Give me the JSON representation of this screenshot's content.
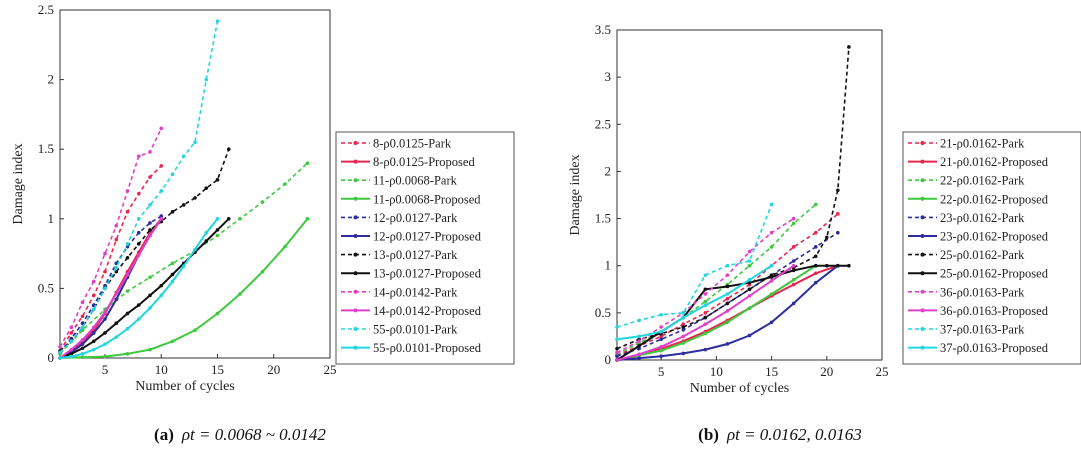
{
  "charts": [
    {
      "type": "line",
      "caption_tag": "(a)",
      "caption_formula": "ρt = 0.0068 ~ 0.0142",
      "xlabel": "Number of cycles",
      "ylabel": "Damage index",
      "xlim": [
        1,
        25
      ],
      "ylim": [
        0,
        2.5
      ],
      "xticks": [
        5,
        10,
        15,
        20,
        25
      ],
      "yticks": [
        0,
        0.5,
        1,
        1.5,
        2,
        2.5
      ],
      "series": [
        {
          "name": "8-ρ0.0125-Park",
          "color": "#e8254f",
          "dash": true,
          "marker": true,
          "x": [
            1,
            2,
            3,
            4,
            5,
            6,
            7,
            8,
            9,
            10
          ],
          "y": [
            0.05,
            0.18,
            0.3,
            0.45,
            0.62,
            0.85,
            1.05,
            1.18,
            1.3,
            1.38
          ]
        },
        {
          "name": "8-ρ0.0125-Proposed",
          "color": "#e8254f",
          "dash": false,
          "marker": true,
          "x": [
            1,
            2,
            3,
            4,
            5,
            6,
            7,
            8,
            9,
            10
          ],
          "y": [
            0,
            0.05,
            0.11,
            0.2,
            0.32,
            0.47,
            0.62,
            0.76,
            0.9,
            1.0
          ]
        },
        {
          "name": "11-ρ0.0068-Park",
          "color": "#3ec93e",
          "dash": true,
          "marker": true,
          "x": [
            1,
            3,
            5,
            7,
            9,
            11,
            13,
            15,
            17,
            19,
            21,
            23
          ],
          "y": [
            0.03,
            0.2,
            0.35,
            0.48,
            0.58,
            0.68,
            0.77,
            0.88,
            1.0,
            1.12,
            1.25,
            1.4
          ]
        },
        {
          "name": "11-ρ0.0068-Proposed",
          "color": "#3ec93e",
          "dash": false,
          "marker": true,
          "x": [
            1,
            3,
            5,
            7,
            9,
            11,
            13,
            15,
            17,
            19,
            21,
            23
          ],
          "y": [
            0,
            0.005,
            0.01,
            0.03,
            0.06,
            0.12,
            0.2,
            0.32,
            0.46,
            0.62,
            0.8,
            1.0
          ]
        },
        {
          "name": "12-ρ0.0127-Park",
          "color": "#2d2d9e",
          "dash": true,
          "marker": true,
          "x": [
            1,
            2,
            3,
            4,
            5,
            6,
            7,
            8,
            9,
            10
          ],
          "y": [
            0.04,
            0.14,
            0.25,
            0.38,
            0.52,
            0.68,
            0.8,
            0.9,
            0.97,
            1.02
          ]
        },
        {
          "name": "12-ρ0.0127-Proposed",
          "color": "#2d2d9e",
          "dash": false,
          "marker": true,
          "x": [
            1,
            2,
            3,
            4,
            5,
            6,
            7,
            8,
            9,
            10
          ],
          "y": [
            0,
            0.04,
            0.1,
            0.18,
            0.28,
            0.42,
            0.58,
            0.74,
            0.88,
            1.0
          ]
        },
        {
          "name": "13-ρ0.0127-Park",
          "color": "#111111",
          "dash": true,
          "marker": true,
          "x": [
            1,
            2,
            3,
            4,
            5,
            6,
            7,
            8,
            9,
            10,
            11,
            12,
            13,
            14,
            15,
            16
          ],
          "y": [
            0.05,
            0.12,
            0.22,
            0.35,
            0.5,
            0.62,
            0.72,
            0.82,
            0.92,
            0.98,
            1.05,
            1.1,
            1.15,
            1.22,
            1.28,
            1.5
          ]
        },
        {
          "name": "13-ρ0.0127-Proposed",
          "color": "#111111",
          "dash": false,
          "marker": true,
          "x": [
            1,
            2,
            3,
            4,
            5,
            6,
            7,
            8,
            9,
            10,
            11,
            12,
            13,
            14,
            15,
            16
          ],
          "y": [
            0,
            0.03,
            0.07,
            0.12,
            0.18,
            0.25,
            0.32,
            0.38,
            0.45,
            0.52,
            0.6,
            0.68,
            0.76,
            0.84,
            0.92,
            1.0
          ]
        },
        {
          "name": "14-ρ0.0142-Park",
          "color": "#e040c8",
          "dash": true,
          "marker": true,
          "x": [
            1,
            2,
            3,
            4,
            5,
            6,
            7,
            8,
            9,
            10
          ],
          "y": [
            0.08,
            0.22,
            0.4,
            0.55,
            0.75,
            0.95,
            1.2,
            1.45,
            1.48,
            1.65
          ]
        },
        {
          "name": "14-ρ0.0142-Proposed",
          "color": "#e040c8",
          "dash": false,
          "marker": true,
          "x": [
            1,
            2,
            3,
            4,
            5,
            6,
            7,
            8,
            9,
            10
          ],
          "y": [
            0,
            0.06,
            0.13,
            0.22,
            0.33,
            0.46,
            0.6,
            0.74,
            0.88,
            1.0
          ]
        },
        {
          "name": "55-ρ0.0101-Park",
          "color": "#22d6e0",
          "dash": true,
          "marker": true,
          "x": [
            1,
            2,
            3,
            4,
            5,
            6,
            7,
            8,
            9,
            10,
            11,
            12,
            13,
            14,
            15
          ],
          "y": [
            0.04,
            0.12,
            0.22,
            0.35,
            0.5,
            0.65,
            0.82,
            1.0,
            1.1,
            1.2,
            1.32,
            1.45,
            1.55,
            2.0,
            2.42
          ]
        },
        {
          "name": "55-ρ0.0101-Proposed",
          "color": "#22d6e0",
          "dash": false,
          "marker": true,
          "x": [
            1,
            2,
            3,
            4,
            5,
            6,
            7,
            8,
            9,
            10,
            11,
            12,
            13,
            14,
            15
          ],
          "y": [
            0,
            0.01,
            0.03,
            0.06,
            0.1,
            0.15,
            0.21,
            0.28,
            0.36,
            0.45,
            0.55,
            0.66,
            0.78,
            0.9,
            1.0
          ]
        }
      ]
    },
    {
      "type": "line",
      "caption_tag": "(b)",
      "caption_formula": "ρt = 0.0162, 0.0163",
      "xlabel": "Number of cycles",
      "ylabel": "Damage index",
      "xlim": [
        1,
        25
      ],
      "ylim": [
        0,
        3.5
      ],
      "xticks": [
        5,
        10,
        15,
        20,
        25
      ],
      "yticks": [
        0,
        0.5,
        1,
        1.5,
        2,
        2.5,
        3,
        3.5
      ],
      "series": [
        {
          "name": "21-ρ0.0162-Park",
          "color": "#e8254f",
          "dash": true,
          "marker": true,
          "x": [
            1,
            3,
            5,
            7,
            9,
            11,
            13,
            15,
            17,
            19,
            21
          ],
          "y": [
            0.05,
            0.15,
            0.25,
            0.38,
            0.5,
            0.65,
            0.8,
            1.0,
            1.2,
            1.35,
            1.55
          ]
        },
        {
          "name": "21-ρ0.0162-Proposed",
          "color": "#e8254f",
          "dash": false,
          "marker": true,
          "x": [
            1,
            3,
            5,
            7,
            9,
            11,
            13,
            15,
            17,
            19,
            21
          ],
          "y": [
            0,
            0.05,
            0.12,
            0.2,
            0.3,
            0.42,
            0.55,
            0.68,
            0.8,
            0.92,
            1.0
          ]
        },
        {
          "name": "22-ρ0.0162-Park",
          "color": "#3ec93e",
          "dash": true,
          "marker": true,
          "x": [
            1,
            3,
            5,
            7,
            9,
            11,
            13,
            15,
            17,
            19
          ],
          "y": [
            0.06,
            0.18,
            0.3,
            0.45,
            0.62,
            0.8,
            1.0,
            1.2,
            1.45,
            1.65
          ]
        },
        {
          "name": "22-ρ0.0162-Proposed",
          "color": "#3ec93e",
          "dash": false,
          "marker": true,
          "x": [
            1,
            3,
            5,
            7,
            9,
            11,
            13,
            15,
            17,
            19
          ],
          "y": [
            0,
            0.05,
            0.1,
            0.18,
            0.28,
            0.4,
            0.55,
            0.7,
            0.85,
            1.0
          ]
        },
        {
          "name": "23-ρ0.0162-Park",
          "color": "#2d2d9e",
          "dash": true,
          "marker": true,
          "x": [
            1,
            3,
            5,
            7,
            9,
            11,
            13,
            15,
            17,
            19,
            21
          ],
          "y": [
            0.04,
            0.12,
            0.22,
            0.32,
            0.45,
            0.6,
            0.75,
            0.9,
            1.05,
            1.2,
            1.35
          ]
        },
        {
          "name": "23-ρ0.0162-Proposed",
          "color": "#2d2d9e",
          "dash": false,
          "marker": true,
          "x": [
            1,
            3,
            5,
            7,
            9,
            11,
            13,
            15,
            17,
            19,
            21
          ],
          "y": [
            0,
            0.02,
            0.04,
            0.07,
            0.11,
            0.17,
            0.26,
            0.4,
            0.6,
            0.82,
            1.0
          ]
        },
        {
          "name": "25-ρ0.0162-Park",
          "color": "#111111",
          "dash": true,
          "marker": true,
          "x": [
            1,
            3,
            5,
            7,
            9,
            11,
            13,
            15,
            17,
            19,
            20,
            21,
            22
          ],
          "y": [
            0.12,
            0.22,
            0.28,
            0.35,
            0.45,
            0.6,
            0.75,
            0.9,
            0.98,
            1.1,
            1.3,
            1.8,
            3.32
          ]
        },
        {
          "name": "25-ρ0.0162-Proposed",
          "color": "#111111",
          "dash": false,
          "marker": true,
          "x": [
            1,
            3,
            5,
            7,
            9,
            11,
            13,
            15,
            17,
            19,
            20,
            21,
            22
          ],
          "y": [
            0,
            0.15,
            0.3,
            0.45,
            0.75,
            0.78,
            0.82,
            0.88,
            0.95,
            1.0,
            1.0,
            1.0,
            1.0
          ]
        },
        {
          "name": "36-ρ0.0163-Park",
          "color": "#e040c8",
          "dash": true,
          "marker": true,
          "x": [
            1,
            3,
            5,
            7,
            9,
            11,
            13,
            15,
            17
          ],
          "y": [
            0.08,
            0.2,
            0.35,
            0.5,
            0.7,
            0.9,
            1.15,
            1.35,
            1.5
          ]
        },
        {
          "name": "36-ρ0.0163-Proposed",
          "color": "#e040c8",
          "dash": false,
          "marker": true,
          "x": [
            1,
            3,
            5,
            7,
            9,
            11,
            13,
            15,
            17
          ],
          "y": [
            0,
            0.06,
            0.14,
            0.25,
            0.38,
            0.52,
            0.68,
            0.84,
            1.0
          ]
        },
        {
          "name": "37-ρ0.0163-Park",
          "color": "#22d6e0",
          "dash": true,
          "marker": true,
          "x": [
            1,
            3,
            5,
            7,
            9,
            11,
            13,
            15
          ],
          "y": [
            0.35,
            0.42,
            0.48,
            0.5,
            0.9,
            1.0,
            1.05,
            1.65
          ]
        },
        {
          "name": "37-ρ0.0163-Proposed",
          "color": "#22d6e0",
          "dash": false,
          "marker": true,
          "x": [
            1,
            3,
            5,
            7,
            9,
            11,
            13,
            15
          ],
          "y": [
            0.22,
            0.25,
            0.3,
            0.45,
            0.58,
            0.7,
            0.85,
            1.0
          ]
        }
      ]
    }
  ]
}
